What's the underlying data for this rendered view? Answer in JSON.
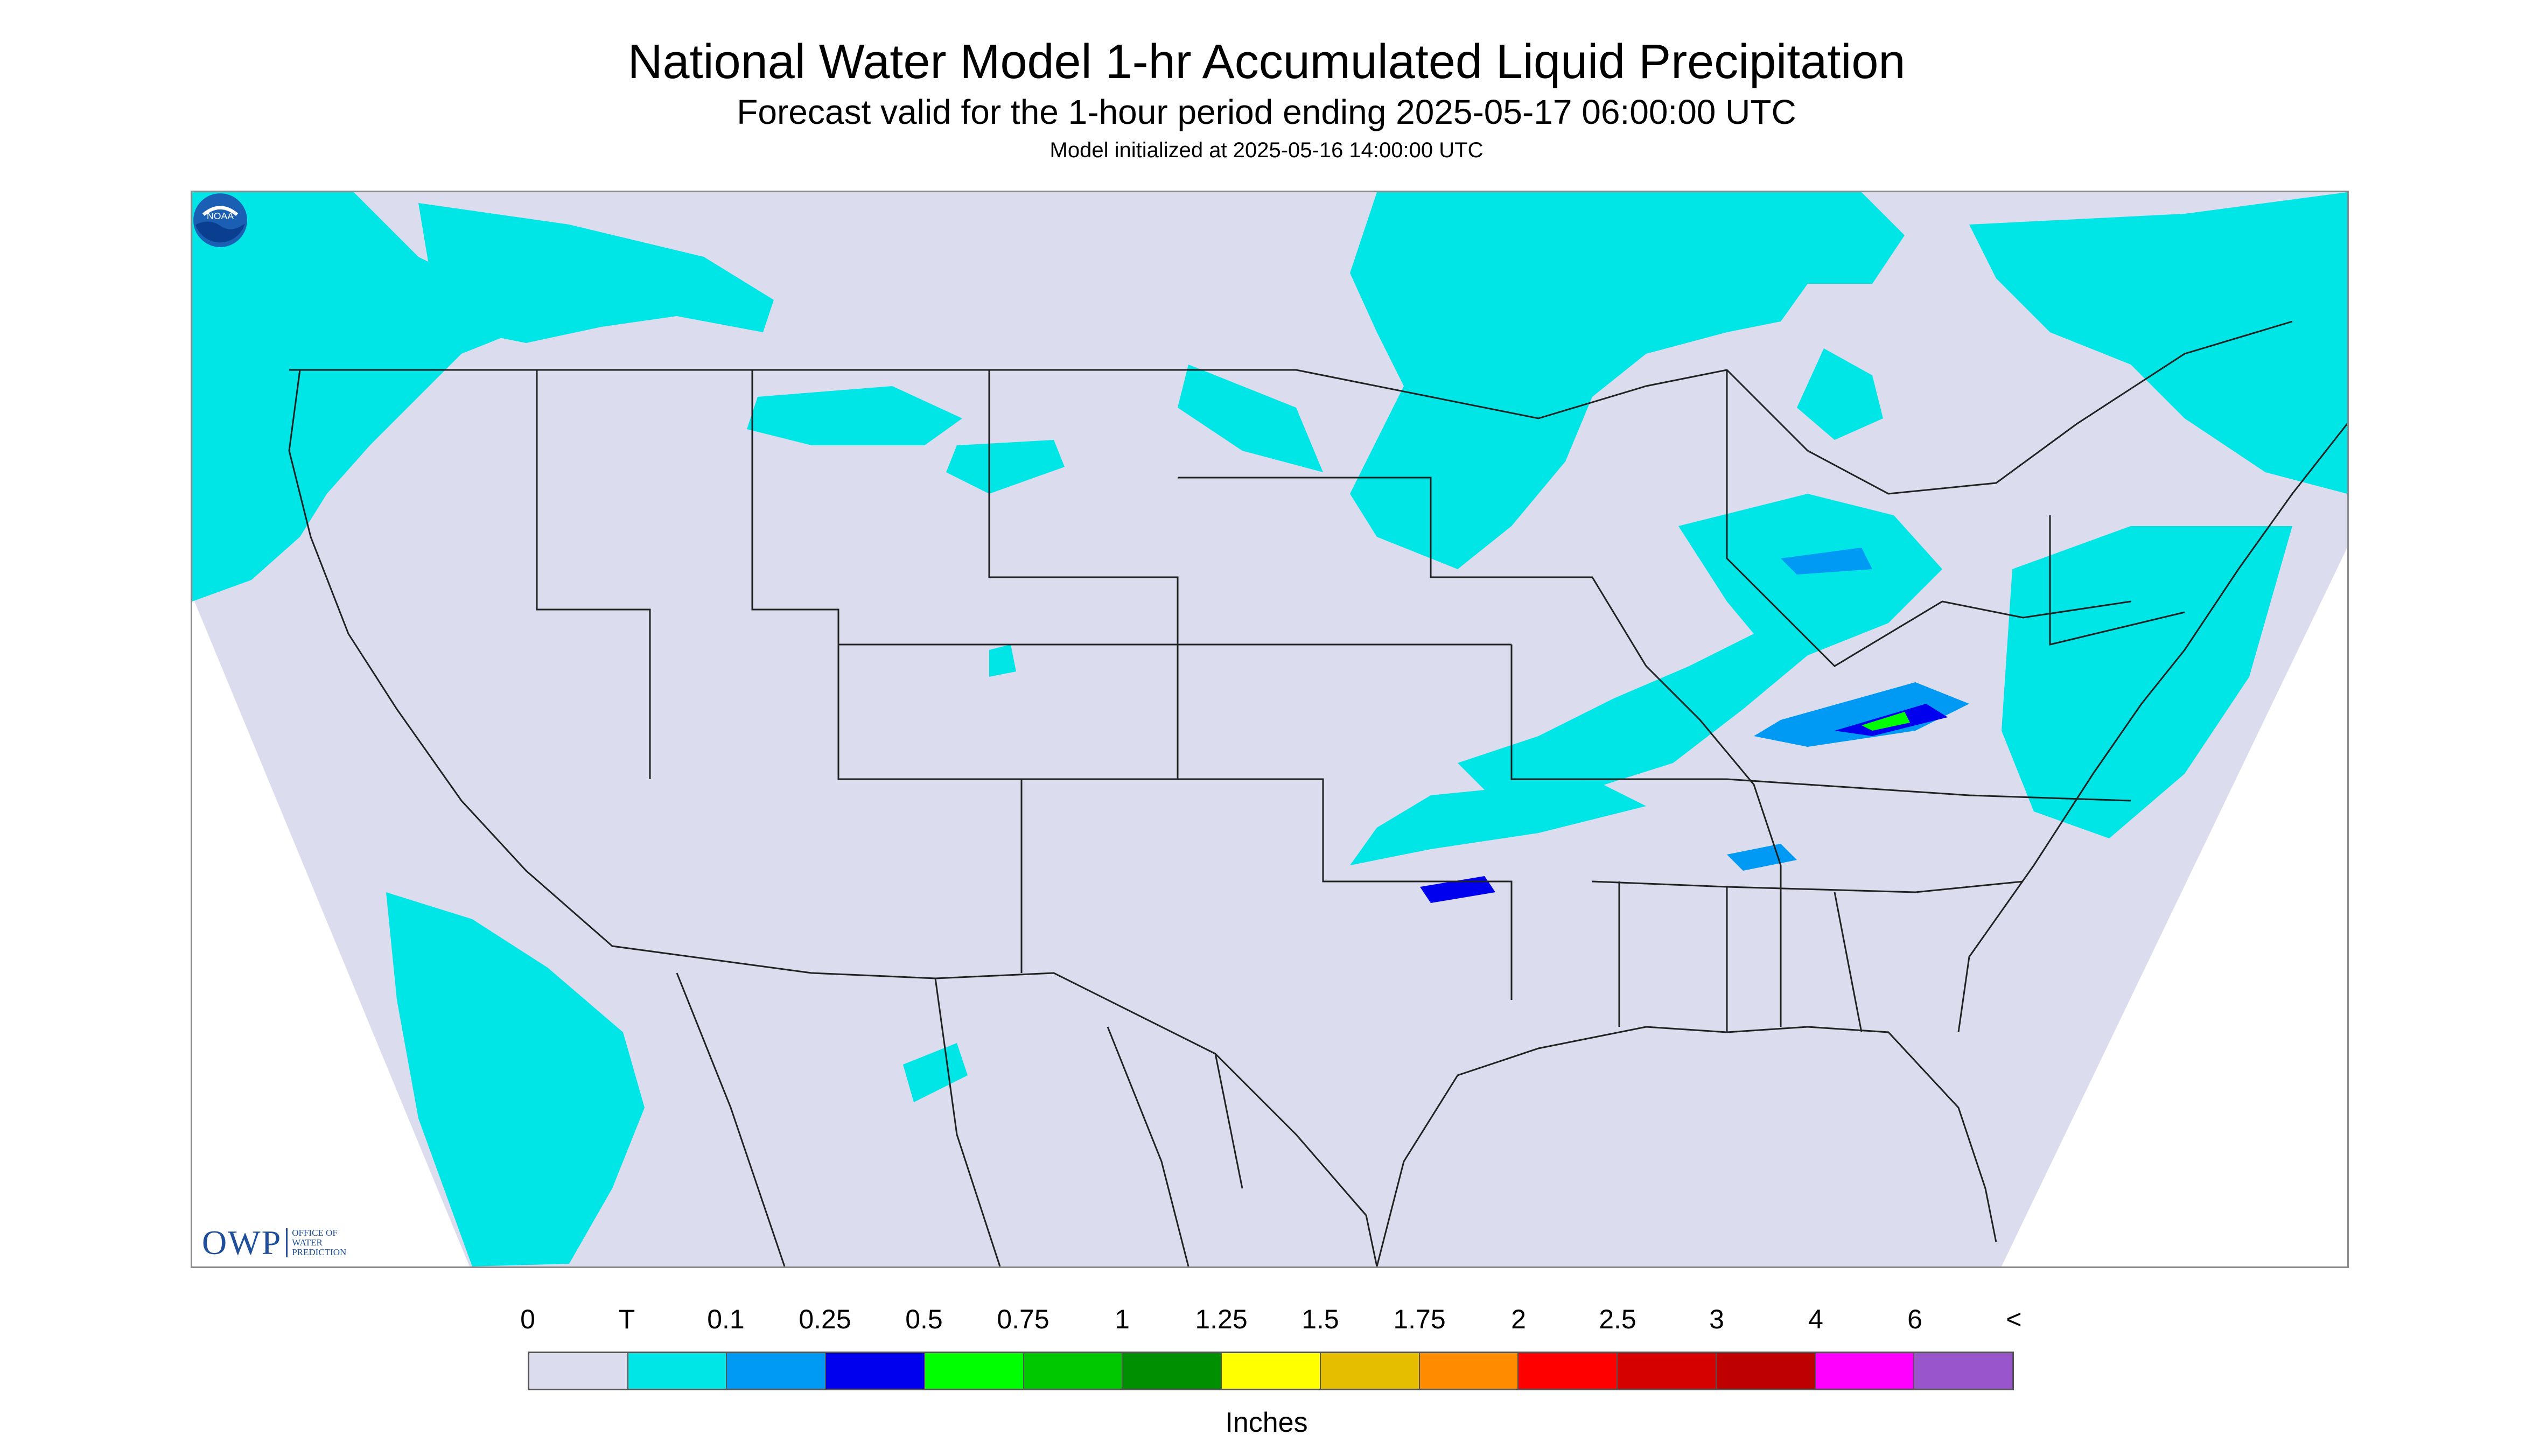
{
  "title": "National Water Model 1-hr Accumulated Liquid Precipitation",
  "subtitle": "Forecast valid for the 1-hour period ending 2025-05-17 06:00:00 UTC",
  "init_text": "Model initialized at 2025-05-16 14:00:00 UTC",
  "colors": {
    "no_data": "#ffffff",
    "background": "#dcdcef",
    "trace": "#00e5e5",
    "boundary": "#222222"
  },
  "logos": {
    "owp": {
      "mark": "OWP",
      "lines": [
        "OFFICE OF",
        "WATER",
        "PREDICTION"
      ]
    },
    "noaa": {
      "label": "NOAA",
      "icon": "noaa-logo-icon"
    }
  },
  "legend": {
    "tick_labels": [
      "0",
      "T",
      "0.1",
      "0.25",
      "0.5",
      "0.75",
      "1",
      "1.25",
      "1.5",
      "1.75",
      "2",
      "2.5",
      "3",
      "4",
      "6",
      "<"
    ],
    "colors": [
      "#dcdcef",
      "#00e5e5",
      "#009af5",
      "#0000ee",
      "#00ff00",
      "#00c800",
      "#008f00",
      "#ffff00",
      "#e5be00",
      "#ff8c00",
      "#ff0000",
      "#d50000",
      "#bf0000",
      "#ff00ff",
      "#9955cc"
    ],
    "units": "Inches"
  }
}
